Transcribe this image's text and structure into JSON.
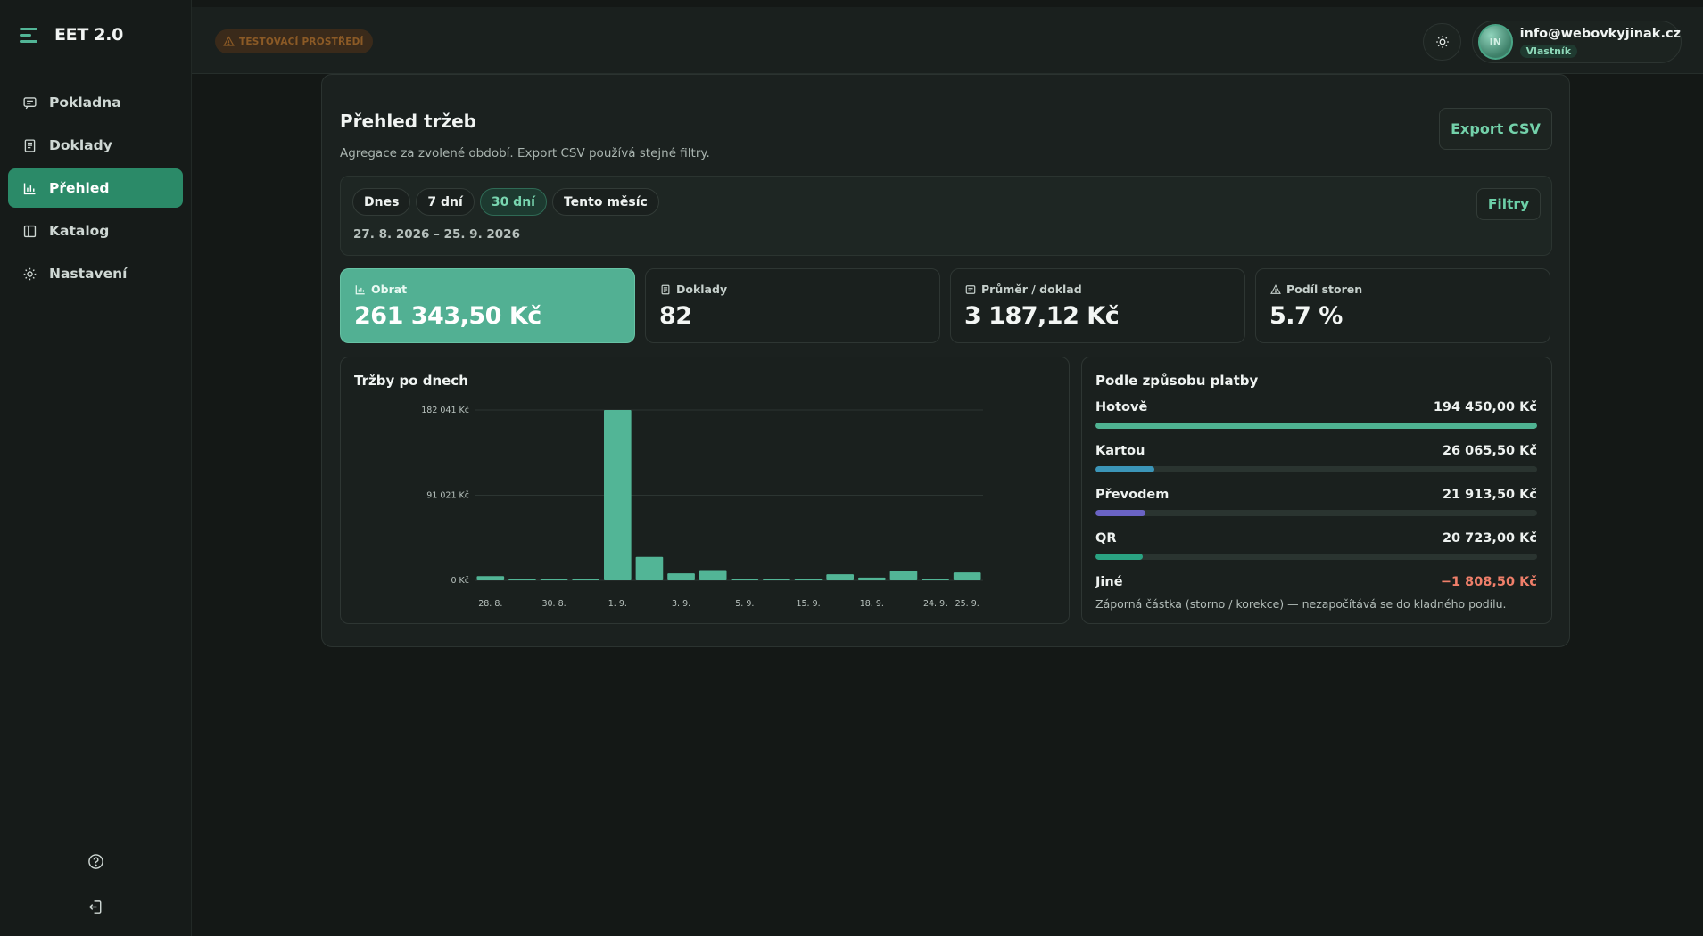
{
  "app": {
    "title": "EET 2.0"
  },
  "sidebar": {
    "items": [
      {
        "label": "Pokladna",
        "icon": "receipt-icon"
      },
      {
        "label": "Doklady",
        "icon": "document-icon"
      },
      {
        "label": "Přehled",
        "icon": "chart-icon",
        "active": true
      },
      {
        "label": "Katalog",
        "icon": "book-icon"
      },
      {
        "label": "Nastavení",
        "icon": "gear-icon"
      }
    ],
    "bottom_icons": [
      "help-icon",
      "logout-icon"
    ]
  },
  "topbar": {
    "env_badge": "TESTOVACÍ PROSTŘEDÍ",
    "user": {
      "initials": "IN",
      "email": "info@webovkyjinak.cz",
      "role": "Vlastník"
    }
  },
  "page": {
    "title": "Přehled tržeb",
    "subtitle": "Agregace za zvolené období. Export CSV používá stejné filtry.",
    "export_label": "Export CSV",
    "filters_label": "Filtry",
    "chips": [
      {
        "label": "Dnes",
        "active": false
      },
      {
        "label": "7 dní",
        "active": false
      },
      {
        "label": "30 dní",
        "active": true
      },
      {
        "label": "Tento měsíc",
        "active": false
      }
    ],
    "date_range": "27. 8. 2026 – 25. 9. 2026"
  },
  "stats": [
    {
      "label": "Obrat",
      "value": "261 343,50 Kč",
      "icon": "chart-icon"
    },
    {
      "label": "Doklady",
      "value": "82",
      "icon": "document-icon"
    },
    {
      "label": "Průměr / doklad",
      "value": "3 187,12 Kč",
      "icon": "receipt-icon"
    },
    {
      "label": "Podíl storen",
      "value": "5.7 %",
      "icon": "warning-icon"
    }
  ],
  "chart_panel": {
    "title": "Tržby po dnech"
  },
  "chart_data": {
    "type": "bar",
    "title": "Tržby po dnech",
    "xlabel": "",
    "ylabel": "",
    "ylim": [
      0,
      182041
    ],
    "y_ticks": [
      "0 Kč",
      "91 021 Kč",
      "182 041 Kč"
    ],
    "y_tick_values": [
      0,
      91021,
      182041
    ],
    "categories": [
      "28. 8.",
      "29. 8.",
      "30. 8.",
      "31. 8.",
      "1. 9.",
      "2. 9.",
      "3. 9.",
      "4. 9.",
      "5. 9.",
      "6. 9.",
      "15. 9.",
      "16. 9.",
      "18. 9.",
      "19. 9.",
      "24. 9.",
      "25. 9."
    ],
    "x_tick_labels": [
      "28. 8.",
      "30. 8.",
      "1. 9.",
      "3. 9.",
      "5. 9.",
      "15. 9.",
      "18. 9.",
      "24. 9.",
      "25. 9."
    ],
    "values": [
      4500,
      1500,
      1500,
      1500,
      182041,
      25000,
      7500,
      11000,
      1500,
      1500,
      1500,
      6500,
      3000,
      10000,
      1500,
      8500
    ],
    "grid": true
  },
  "payments": {
    "title": "Podle způsobu platby",
    "rows": [
      {
        "label": "Hotově",
        "value": "194 450,00 Kč",
        "fraction": 1.0,
        "color": "#4fb392"
      },
      {
        "label": "Kartou",
        "value": "26 065,50 Kč",
        "fraction": 0.134,
        "color": "#3b95b8"
      },
      {
        "label": "Převodem",
        "value": "21 913,50 Kč",
        "fraction": 0.113,
        "color": "#6a63c4"
      },
      {
        "label": "QR",
        "value": "20 723,00 Kč",
        "fraction": 0.107,
        "color": "#2aa382"
      }
    ],
    "other": {
      "label": "Jiné",
      "value": "−1 808,50 Kč"
    },
    "note": "Záporná částka (storno / korekce) — nezapočítává se do kladného podílu."
  }
}
